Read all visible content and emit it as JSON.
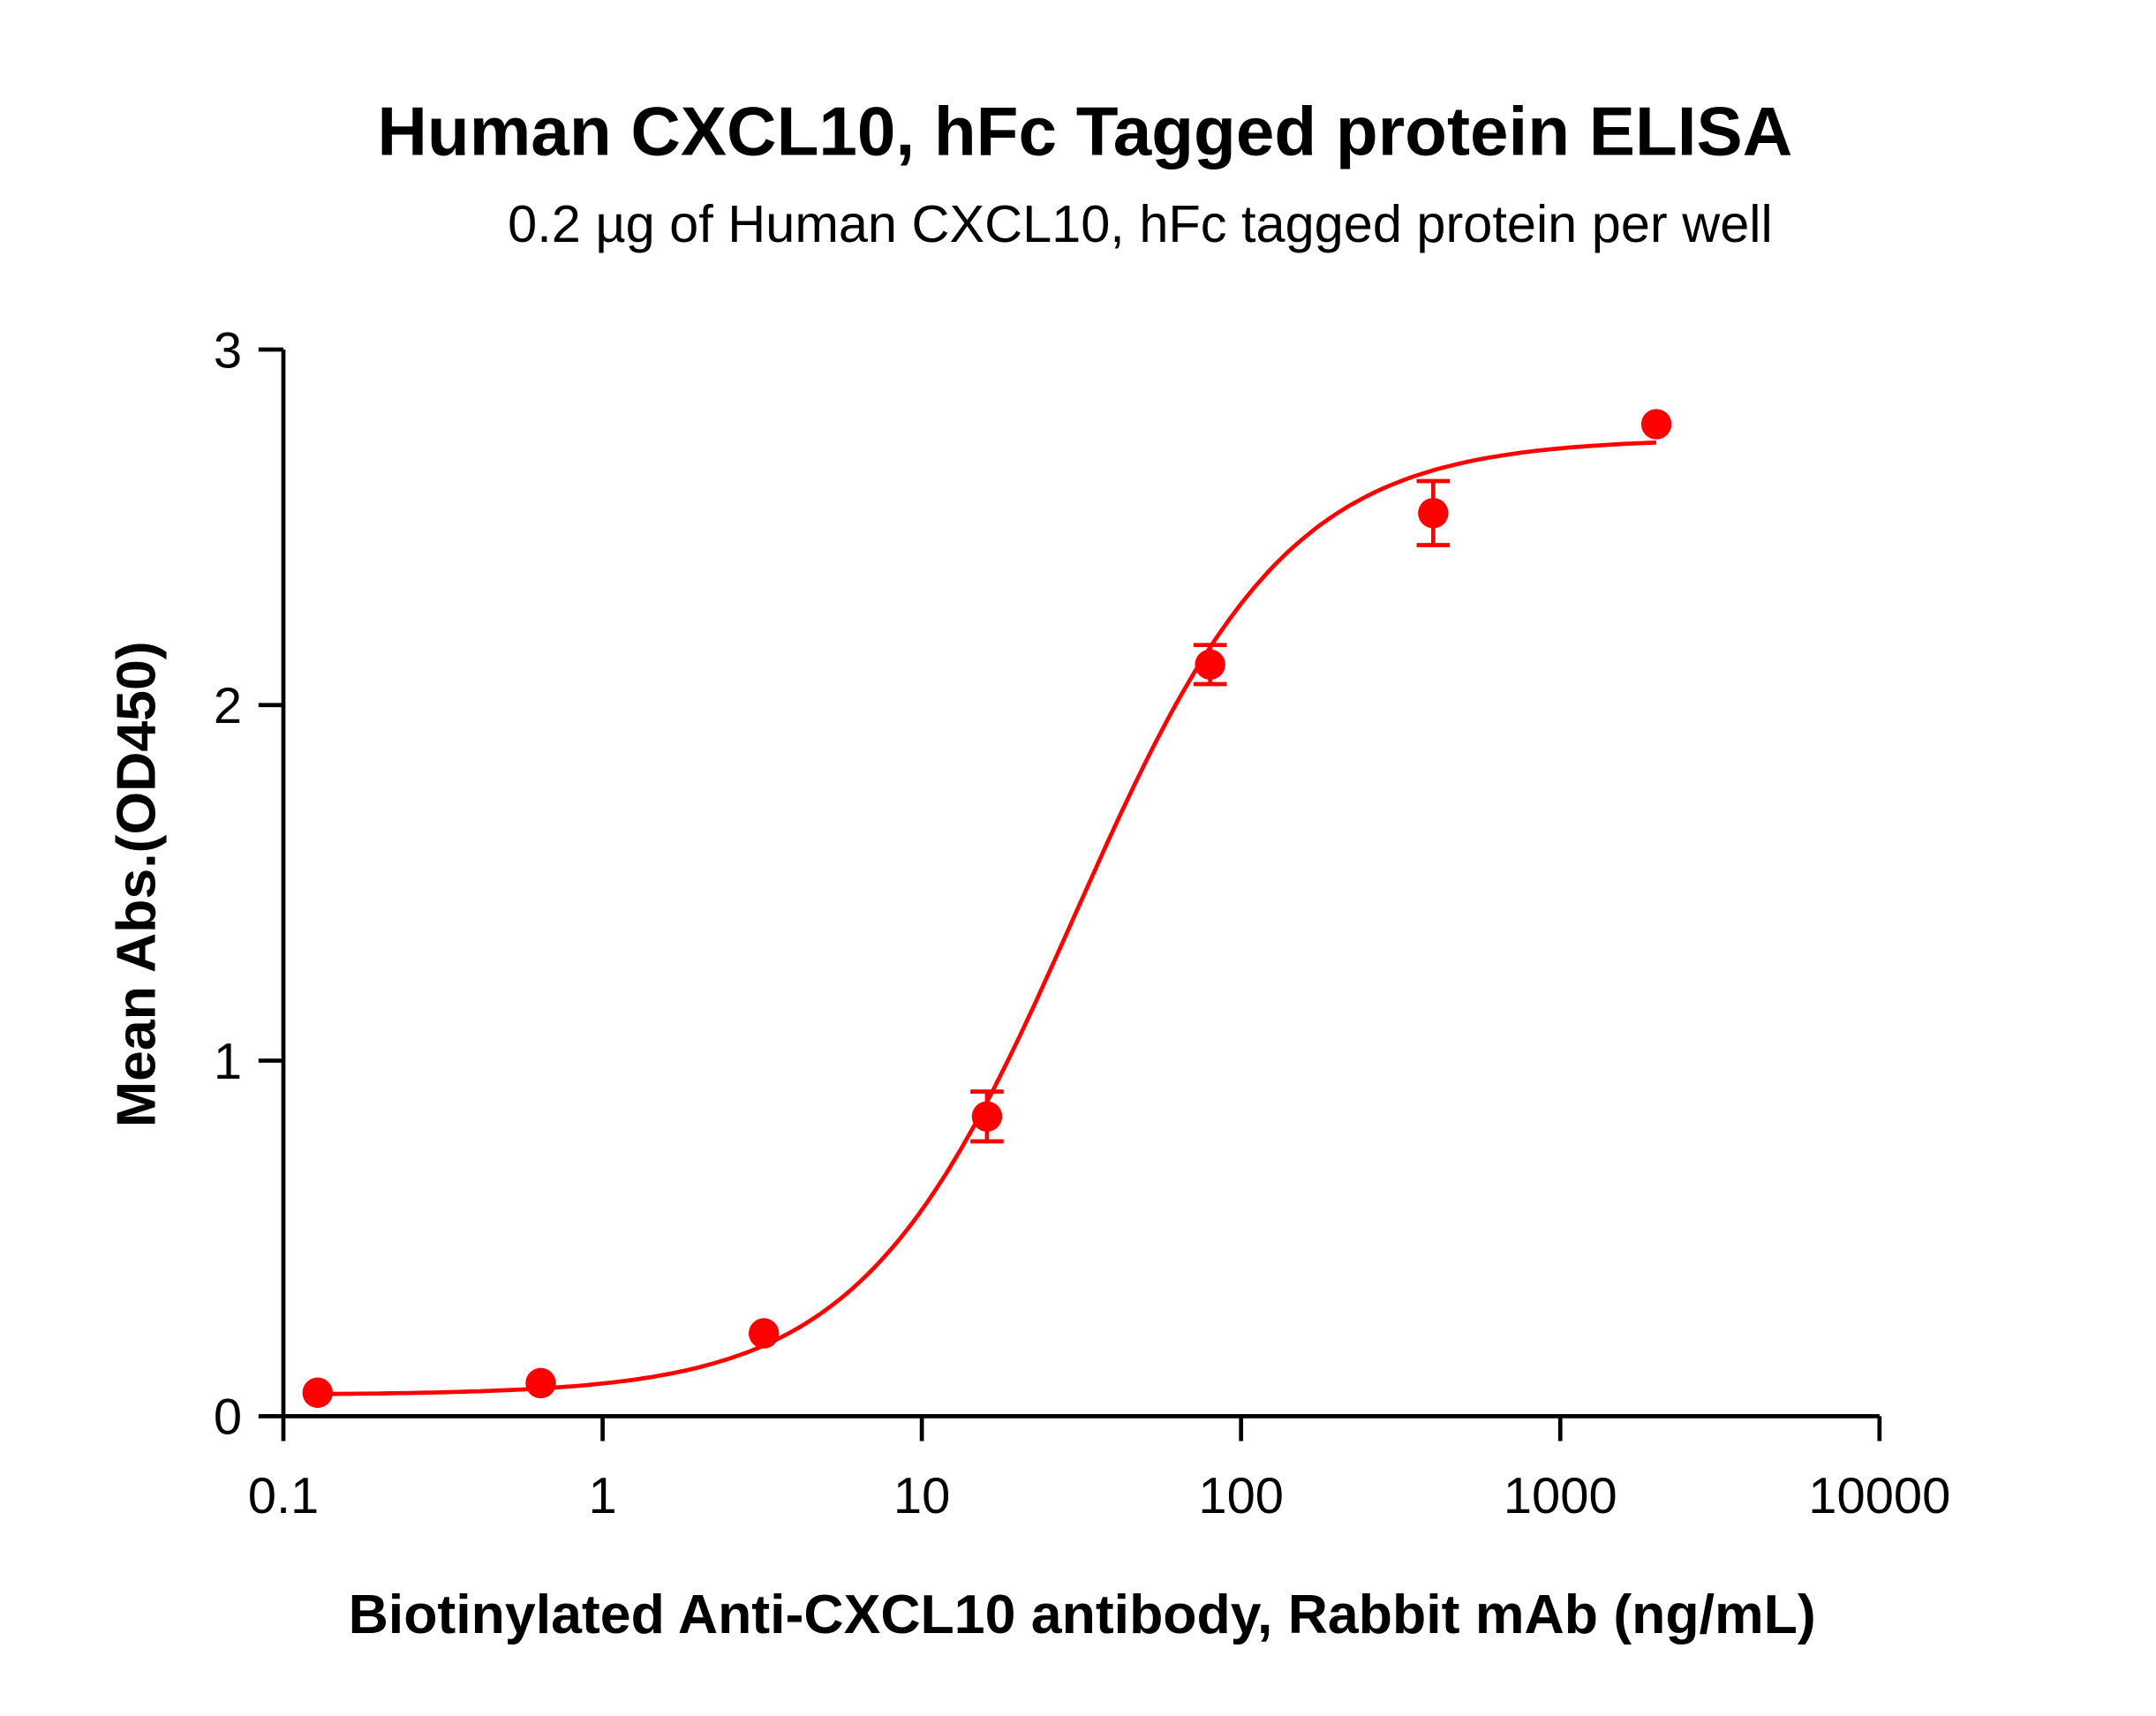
{
  "chart_data": {
    "type": "scatter",
    "title": "Human CXCL10, hFc Tagged protein ELISA",
    "subtitle": "0.2 µg of Human CXCL10, hFc tagged protein per well",
    "xlabel": "Biotinylated Anti-CXCL10 antibody, Rabbit mAb (ng/mL)",
    "ylabel": "Mean Abs.(OD450)",
    "x_scale": "log",
    "xlim": [
      0.1,
      10000
    ],
    "ylim": [
      0,
      3
    ],
    "x_ticks": [
      "0.1",
      "1",
      "10",
      "100",
      "1000",
      "10000"
    ],
    "y_ticks": [
      "0",
      "1",
      "2",
      "3"
    ],
    "grid": false,
    "color": "#ff0000",
    "fit": "sigmoidal curve",
    "series": [
      {
        "x": [
          0.128,
          0.64,
          3.2,
          16,
          80,
          400,
          2000
        ],
        "y": [
          0.066,
          0.093,
          0.233,
          0.843,
          2.114,
          2.54,
          2.79
        ],
        "error": [
          0.01,
          0.01,
          0.015,
          0.07,
          0.055,
          0.09,
          0.01
        ]
      }
    ]
  }
}
